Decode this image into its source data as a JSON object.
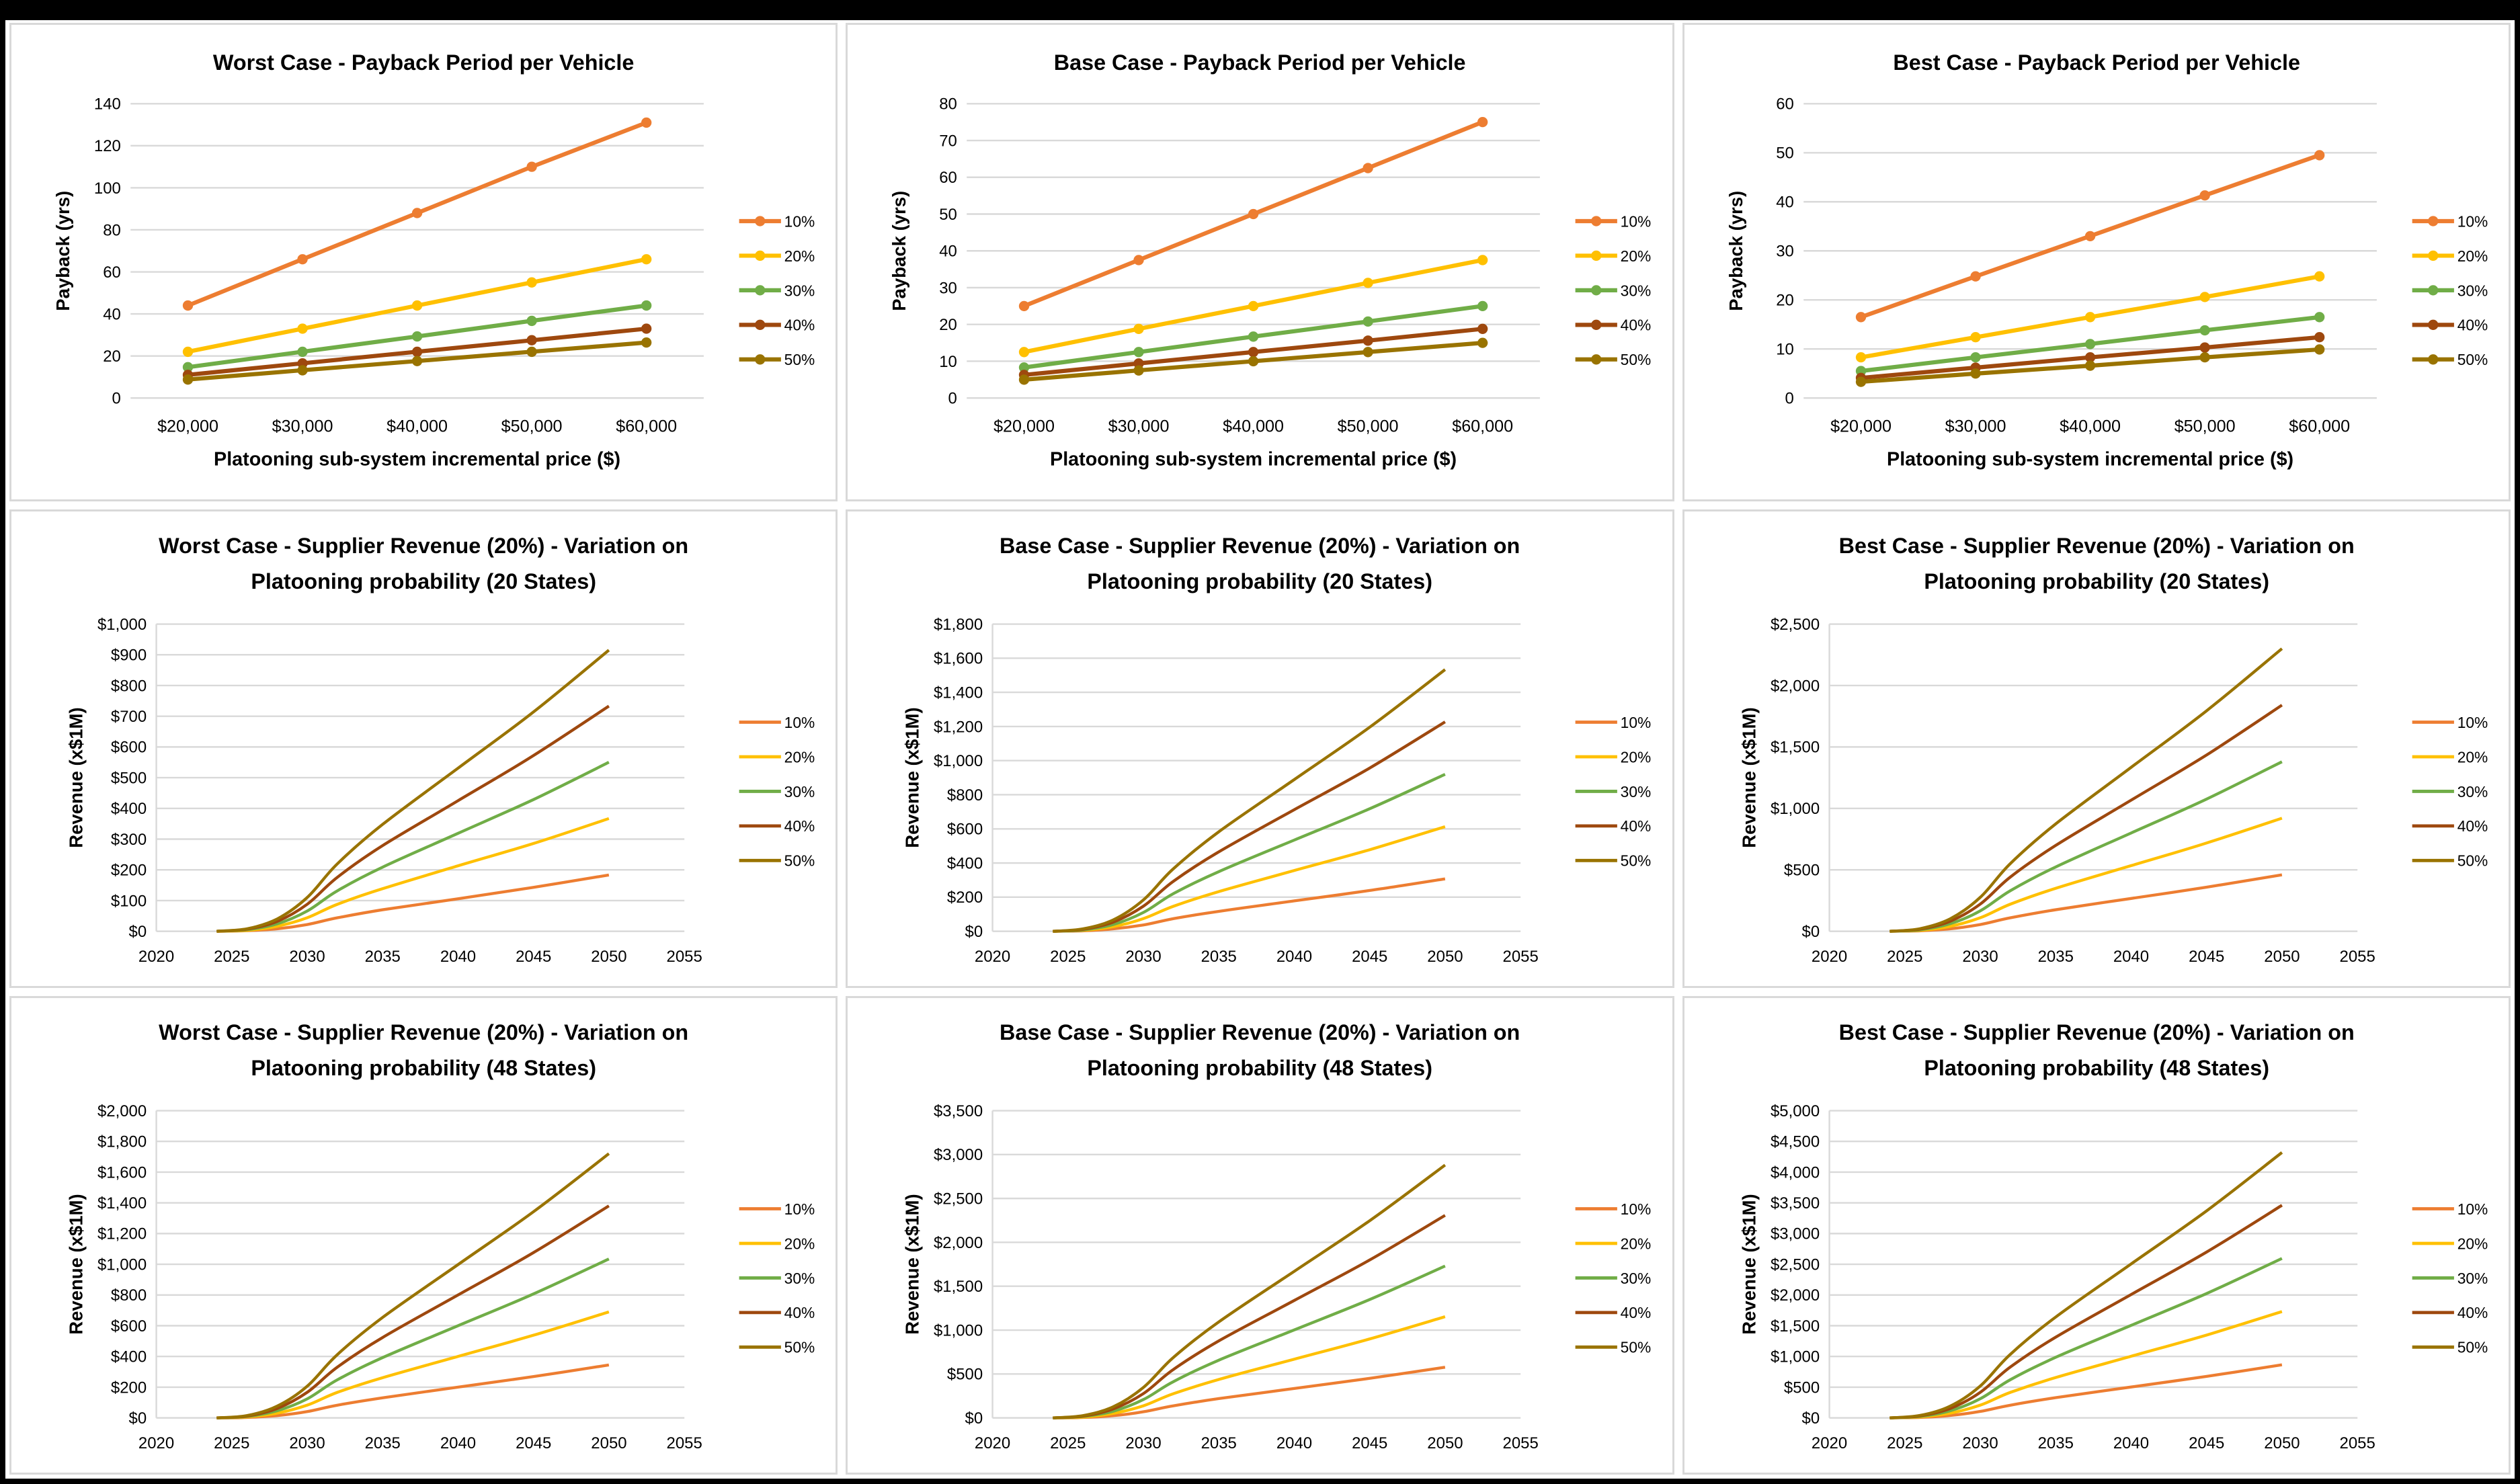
{
  "colors": {
    "10%": "#ED7D31",
    "20%": "#FFC000",
    "30%": "#70AD47",
    "40%": "#9E480E",
    "50%": "#997300",
    "grid": "#d9d9d9"
  },
  "chart_data": [
    {
      "type": "line",
      "title": [
        "Worst Case - Payback Period per Vehicle"
      ],
      "xlabel": "Platooning sub-system incremental price ($)",
      "ylabel": "Payback (yrs)",
      "categories": [
        "$20,000",
        "$30,000",
        "$40,000",
        "$50,000",
        "$60,000"
      ],
      "ylim": [
        0,
        140
      ],
      "ystep": 20,
      "yformat": "plain",
      "markers": true,
      "legend": "right",
      "series": [
        {
          "name": "10%",
          "values": [
            44,
            66,
            88,
            110,
            131
          ]
        },
        {
          "name": "20%",
          "values": [
            22,
            33,
            44,
            55,
            66
          ]
        },
        {
          "name": "30%",
          "values": [
            14.7,
            22,
            29.3,
            36.7,
            44
          ]
        },
        {
          "name": "40%",
          "values": [
            11,
            16.5,
            22,
            27.5,
            33
          ]
        },
        {
          "name": "50%",
          "values": [
            8.8,
            13.2,
            17.6,
            22,
            26.4
          ]
        }
      ]
    },
    {
      "type": "line",
      "title": [
        "Base Case - Payback Period per Vehicle"
      ],
      "xlabel": "Platooning sub-system incremental price ($)",
      "ylabel": "Payback (yrs)",
      "categories": [
        "$20,000",
        "$30,000",
        "$40,000",
        "$50,000",
        "$60,000"
      ],
      "ylim": [
        0,
        80
      ],
      "ystep": 10,
      "yformat": "plain",
      "markers": true,
      "legend": "right",
      "series": [
        {
          "name": "10%",
          "values": [
            25,
            37.5,
            50,
            62.5,
            75
          ]
        },
        {
          "name": "20%",
          "values": [
            12.5,
            18.8,
            25,
            31.3,
            37.5
          ]
        },
        {
          "name": "30%",
          "values": [
            8.3,
            12.5,
            16.7,
            20.8,
            25
          ]
        },
        {
          "name": "40%",
          "values": [
            6.3,
            9.4,
            12.5,
            15.6,
            18.8
          ]
        },
        {
          "name": "50%",
          "values": [
            5,
            7.5,
            10,
            12.5,
            15
          ]
        }
      ]
    },
    {
      "type": "line",
      "title": [
        "Best Case - Payback Period per Vehicle"
      ],
      "xlabel": "Platooning sub-system incremental price ($)",
      "ylabel": "Payback (yrs)",
      "categories": [
        "$20,000",
        "$30,000",
        "$40,000",
        "$50,000",
        "$60,000"
      ],
      "ylim": [
        0,
        60
      ],
      "ystep": 10,
      "yformat": "plain",
      "markers": true,
      "legend": "right",
      "series": [
        {
          "name": "10%",
          "values": [
            16.5,
            24.8,
            33,
            41.3,
            49.5
          ]
        },
        {
          "name": "20%",
          "values": [
            8.3,
            12.4,
            16.5,
            20.6,
            24.8
          ]
        },
        {
          "name": "30%",
          "values": [
            5.5,
            8.3,
            11,
            13.8,
            16.5
          ]
        },
        {
          "name": "40%",
          "values": [
            4.1,
            6.2,
            8.3,
            10.3,
            12.4
          ]
        },
        {
          "name": "50%",
          "values": [
            3.3,
            5,
            6.6,
            8.3,
            9.9
          ]
        }
      ]
    },
    {
      "type": "line",
      "title": [
        "Worst Case - Supplier Revenue (20%) - Variation on",
        "Platooning probability (20 States)"
      ],
      "xlabel": "",
      "ylabel": "Revenue (x$1M)",
      "x": [
        2024,
        2026,
        2028,
        2030,
        2032,
        2035,
        2040,
        2045,
        2050
      ],
      "xlim": [
        2020,
        2055
      ],
      "xstep": 5,
      "ylim": [
        0,
        1000
      ],
      "ystep": 100,
      "yformat": "dollar",
      "markers": false,
      "legend": "right",
      "series": [
        {
          "name": "10%",
          "values": [
            0,
            2,
            8,
            22,
            44,
            70,
            106,
            143,
            183
          ]
        },
        {
          "name": "20%",
          "values": [
            0,
            3,
            16,
            44,
            88,
            139,
            213,
            286,
            367
          ]
        },
        {
          "name": "30%",
          "values": [
            0,
            5,
            24,
            66,
            132,
            209,
            319,
            429,
            550
          ]
        },
        {
          "name": "40%",
          "values": [
            0,
            7,
            32,
            88,
            176,
            279,
            425,
            572,
            733
          ]
        },
        {
          "name": "50%",
          "values": [
            0,
            8,
            40,
            110,
            220,
            348,
            531,
            714,
            915
          ]
        }
      ]
    },
    {
      "type": "line",
      "title": [
        "Base Case - Supplier Revenue (20%) - Variation on",
        "Platooning probability (20 States)"
      ],
      "xlabel": "",
      "ylabel": "Revenue (x$1M)",
      "x": [
        2024,
        2026,
        2028,
        2030,
        2032,
        2035,
        2040,
        2045,
        2050
      ],
      "xlim": [
        2020,
        2055
      ],
      "xstep": 5,
      "ylim": [
        0,
        1800
      ],
      "ystep": 200,
      "yformat": "dollar",
      "markers": false,
      "legend": "right",
      "series": [
        {
          "name": "10%",
          "values": [
            0,
            3,
            14,
            37,
            74,
            117,
            178,
            239,
            307
          ]
        },
        {
          "name": "20%",
          "values": [
            0,
            6,
            27,
            74,
            147,
            233,
            356,
            478,
            613
          ]
        },
        {
          "name": "30%",
          "values": [
            0,
            8,
            40,
            110,
            221,
            350,
            534,
            718,
            920
          ]
        },
        {
          "name": "40%",
          "values": [
            0,
            11,
            54,
            147,
            294,
            466,
            712,
            957,
            1227
          ]
        },
        {
          "name": "50%",
          "values": [
            0,
            14,
            67,
            184,
            368,
            583,
            889,
            1196,
            1533
          ]
        }
      ]
    },
    {
      "type": "line",
      "title": [
        "Best Case - Supplier Revenue (20%) - Variation on",
        "Platooning probability (20 States)"
      ],
      "xlabel": "",
      "ylabel": "Revenue (x$1M)",
      "x": [
        2024,
        2026,
        2028,
        2030,
        2032,
        2035,
        2040,
        2045,
        2050
      ],
      "xlim": [
        2020,
        2055
      ],
      "xstep": 5,
      "ylim": [
        0,
        2500
      ],
      "ystep": 500,
      "yformat": "dollar",
      "markers": false,
      "legend": "right",
      "series": [
        {
          "name": "10%",
          "values": [
            0,
            4,
            20,
            55,
            110,
            175,
            267,
            359,
            460
          ]
        },
        {
          "name": "20%",
          "values": [
            0,
            8,
            40,
            110,
            221,
            350,
            534,
            718,
            920
          ]
        },
        {
          "name": "30%",
          "values": [
            0,
            12,
            61,
            166,
            331,
            524,
            800,
            1076,
            1380
          ]
        },
        {
          "name": "40%",
          "values": [
            0,
            17,
            81,
            221,
            442,
            699,
            1067,
            1435,
            1840
          ]
        },
        {
          "name": "50%",
          "values": [
            0,
            21,
            101,
            276,
            552,
            874,
            1334,
            1794,
            2300
          ]
        }
      ]
    },
    {
      "type": "line",
      "title": [
        "Worst Case - Supplier Revenue (20%) - Variation on",
        "Platooning probability (48 States)"
      ],
      "xlabel": "",
      "ylabel": "Revenue (x$1M)",
      "x": [
        2024,
        2026,
        2028,
        2030,
        2032,
        2035,
        2040,
        2045,
        2050
      ],
      "xlim": [
        2020,
        2055
      ],
      "xstep": 5,
      "ylim": [
        0,
        2000
      ],
      "ystep": 200,
      "yformat": "dollar",
      "markers": false,
      "legend": "right",
      "series": [
        {
          "name": "10%",
          "values": [
            0,
            3,
            15,
            41,
            83,
            131,
            200,
            269,
            345
          ]
        },
        {
          "name": "20%",
          "values": [
            0,
            6,
            30,
            83,
            166,
            262,
            400,
            538,
            690
          ]
        },
        {
          "name": "30%",
          "values": [
            0,
            9,
            46,
            124,
            248,
            393,
            600,
            807,
            1035
          ]
        },
        {
          "name": "40%",
          "values": [
            0,
            12,
            61,
            166,
            331,
            524,
            800,
            1076,
            1380
          ]
        },
        {
          "name": "50%",
          "values": [
            0,
            15,
            76,
            206,
            413,
            654,
            998,
            1342,
            1720
          ]
        }
      ]
    },
    {
      "type": "line",
      "title": [
        "Base Case - Supplier Revenue (20%) - Variation on",
        "Platooning probability (48 States)"
      ],
      "xlabel": "",
      "ylabel": "Revenue (x$1M)",
      "x": [
        2024,
        2026,
        2028,
        2030,
        2032,
        2035,
        2040,
        2045,
        2050
      ],
      "xlim": [
        2020,
        2055
      ],
      "xstep": 5,
      "ylim": [
        0,
        3500
      ],
      "ystep": 500,
      "yformat": "dollar",
      "markers": false,
      "legend": "right",
      "series": [
        {
          "name": "10%",
          "values": [
            0,
            5,
            25,
            69,
            138,
            219,
            335,
            450,
            577
          ]
        },
        {
          "name": "20%",
          "values": [
            0,
            10,
            51,
            138,
            277,
            438,
            669,
            899,
            1153
          ]
        },
        {
          "name": "30%",
          "values": [
            0,
            16,
            76,
            208,
            415,
            657,
            1003,
            1349,
            1730
          ]
        },
        {
          "name": "40%",
          "values": [
            0,
            21,
            102,
            277,
            554,
            877,
            1338,
            1799,
            2307
          ]
        },
        {
          "name": "50%",
          "values": [
            0,
            26,
            127,
            346,
            691,
            1094,
            1670,
            2246,
            2880
          ]
        }
      ]
    },
    {
      "type": "line",
      "title": [
        "Best Case - Supplier Revenue (20%) - Variation on",
        "Platooning probability (48 States)"
      ],
      "xlabel": "",
      "ylabel": "Revenue (x$1M)",
      "x": [
        2024,
        2026,
        2028,
        2030,
        2032,
        2035,
        2040,
        2045,
        2050
      ],
      "xlim": [
        2020,
        2055
      ],
      "xstep": 5,
      "ylim": [
        0,
        5000
      ],
      "ystep": 500,
      "yformat": "dollar",
      "markers": false,
      "legend": "right",
      "series": [
        {
          "name": "10%",
          "values": [
            0,
            8,
            38,
            104,
            208,
            329,
            502,
            675,
            865
          ]
        },
        {
          "name": "20%",
          "values": [
            0,
            16,
            76,
            208,
            415,
            657,
            1003,
            1349,
            1730
          ]
        },
        {
          "name": "30%",
          "values": [
            0,
            23,
            114,
            311,
            623,
            986,
            1505,
            2024,
            2595
          ]
        },
        {
          "name": "40%",
          "values": [
            0,
            31,
            152,
            415,
            830,
            1315,
            2007,
            2699,
            3460
          ]
        },
        {
          "name": "50%",
          "values": [
            0,
            39,
            190,
            518,
            1037,
            1642,
            2506,
            3370,
            4320
          ]
        }
      ]
    }
  ]
}
